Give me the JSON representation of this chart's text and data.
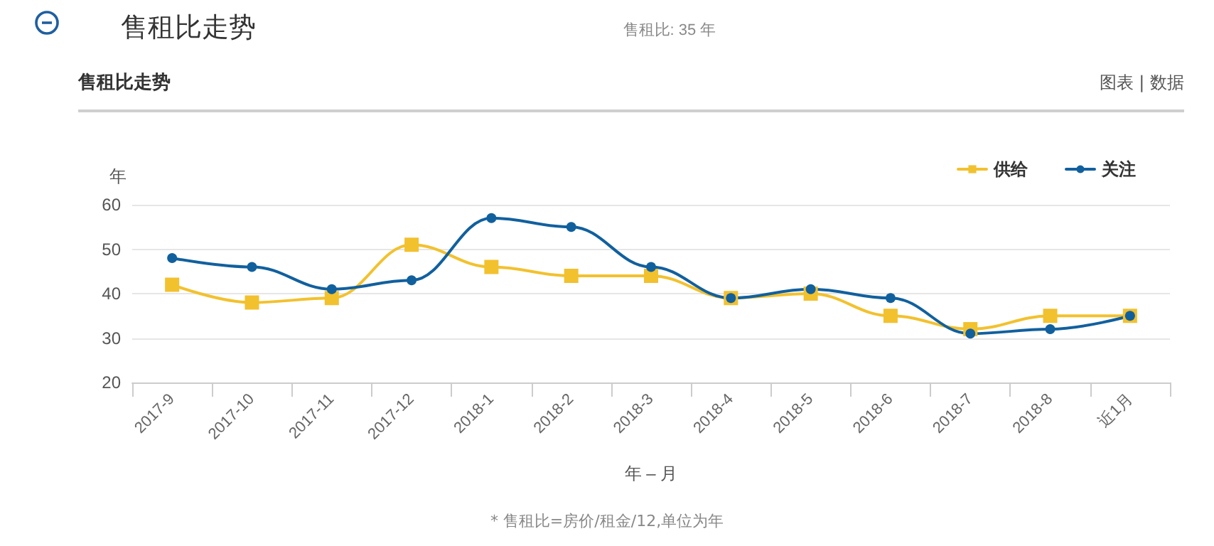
{
  "chart_data": {
    "type": "line",
    "title": "售租比走势",
    "subtitle": "售租比: 35 年",
    "ylabel": "年",
    "xlabel": "年 – 月",
    "annotations": [
      "售租比走势",
      "图表 | 数据",
      "* 售租比=房价/租金/12,单位为年"
    ],
    "categories": [
      "2017-9",
      "2017-10",
      "2017-11",
      "2017-12",
      "2018-1",
      "2018-2",
      "2018-3",
      "2018-4",
      "2018-5",
      "2018-6",
      "2018-7",
      "2018-8",
      "近1月"
    ],
    "series": [
      {
        "name": "供给",
        "color": "#f2c12e",
        "marker": "square",
        "values": [
          42,
          38,
          39,
          51,
          46,
          44,
          44,
          39,
          40,
          35,
          32,
          35,
          35
        ]
      },
      {
        "name": "关注",
        "color": "#11609e",
        "marker": "circle",
        "values": [
          48,
          46,
          41,
          43,
          57,
          55,
          46,
          39,
          41,
          39,
          31,
          32,
          35
        ]
      }
    ],
    "ylim": [
      20,
      60
    ],
    "yticks": [
      20,
      30,
      40,
      50,
      60
    ],
    "grid": "y",
    "legend": "top right",
    "line_style": "solid"
  }
}
